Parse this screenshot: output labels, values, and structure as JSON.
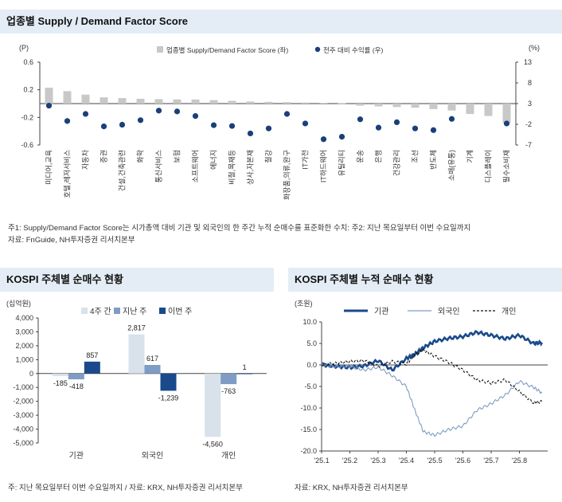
{
  "panel1": {
    "title": "업종별 Supply / Demand Factor Score",
    "left_unit": "(P)",
    "right_unit": "(%)",
    "legend_bar": "업종별 Supply/Demand Factor Score (좌)",
    "legend_dot": "전주 대비 수익률 (우)",
    "note1": "주1: Supply/Demand Factor Score는 시가총액 대비 기관 및 외국인의 한 주간 누적 순매수를 표준화한 수치: 주2: 지난 목요일부터 이번 수요일까지",
    "note2": "자료: FnGuide, NH투자증권 리서치본부"
  },
  "panel2": {
    "title": "KOSPI 주체별 순매수 현황",
    "unit": "(십억원)",
    "note": "주: 지난 목요일부터 이번 수요일까지 / 자료: KRX, NH투자증권 리서치본부"
  },
  "panel3": {
    "title": "KOSPI 주체별 누적 순매수 현황",
    "unit": "(조원)",
    "note": "자료: KRX, NH투자증권 리서치본부"
  },
  "colors": {
    "bar_gray": "#c8c8c8",
    "dot_navy": "#1a3f7a",
    "light": "#d9e1ea",
    "mid": "#7f9cc4",
    "dark": "#1a4a8c",
    "header_bg": "#e4edf6"
  },
  "chart_data": [
    {
      "type": "bar",
      "title": "업종별 Supply / Demand Factor Score",
      "categories": [
        "미디어,교육",
        "호텔,레저서비스",
        "자동차",
        "증권",
        "건설,건축관련",
        "화학",
        "통신서비스",
        "보험",
        "소프트웨어",
        "에너지",
        "비철,목재등",
        "상사,자본재",
        "철강",
        "화장품,의류,완구",
        "IT가전",
        "IT하드웨어",
        "유틸리티",
        "운송",
        "은행",
        "건강관리",
        "조선",
        "반도체",
        "소매(유통)",
        "기계",
        "디스플레이",
        "필수소비재"
      ],
      "series": [
        {
          "name": "업종별 Supply/Demand Factor Score (좌)",
          "axis": "left",
          "values": [
            0.23,
            0.18,
            0.13,
            0.09,
            0.08,
            0.07,
            0.065,
            0.06,
            0.06,
            0.05,
            0.04,
            0.03,
            0.025,
            0.02,
            0.015,
            0.01,
            0.005,
            -0.03,
            -0.04,
            -0.05,
            -0.06,
            -0.08,
            -0.1,
            -0.15,
            -0.18,
            -0.28
          ]
        },
        {
          "name": "전주 대비 수익률 (우)",
          "axis": "right",
          "type": "scatter",
          "values": [
            2.5,
            -1.2,
            0.5,
            -2.5,
            -2.1,
            -1.0,
            1.3,
            1.1,
            0.0,
            -2.2,
            -2.4,
            -4.2,
            -3.0,
            0.5,
            -1.8,
            -5.6,
            -5.0,
            -0.8,
            -2.8,
            -1.5,
            -3.0,
            -3.4,
            -0.7,
            null,
            null,
            -1.8
          ]
        }
      ],
      "ylim_left": [
        -0.6,
        0.6
      ],
      "yticks_left": [
        "0.6",
        "0.2",
        "-0.2",
        "-0.6"
      ],
      "ylim_right": [
        -7,
        13
      ],
      "yticks_right": [
        "13",
        "8",
        "3",
        "-2",
        "-7"
      ],
      "legend": "top-center"
    },
    {
      "type": "bar",
      "title": "KOSPI 주체별 순매수 현황",
      "categories": [
        "기관",
        "외국인",
        "개인"
      ],
      "series": [
        {
          "name": "4주 간",
          "values": [
            -185,
            2817,
            -4560
          ]
        },
        {
          "name": "지난 주",
          "values": [
            -418,
            617,
            -763
          ]
        },
        {
          "name": "이번 주",
          "values": [
            857,
            -1239,
            1
          ]
        }
      ],
      "labels": [
        [
          "-185",
          "-418",
          "857"
        ],
        [
          "2,817",
          "617",
          "-1,239"
        ],
        [
          "-4,560",
          "-763",
          "1"
        ]
      ],
      "ylim": [
        -5000,
        4000
      ],
      "yticks": [
        "4,000",
        "3,000",
        "2,000",
        "1,000",
        "0",
        "-1,000",
        "-2,000",
        "-3,000",
        "-4,000",
        "-5,000"
      ],
      "legend": "top-center"
    },
    {
      "type": "line",
      "title": "KOSPI 주체별 누적 순매수 현황",
      "x": [
        0,
        0.5,
        1,
        1.5,
        2,
        2.5,
        3,
        3.3,
        3.6,
        4,
        4.5,
        5,
        5.5,
        6,
        6.5,
        7,
        7.5,
        7.8
      ],
      "xticks": [
        "'25.1",
        "'25.2",
        "'25.3",
        "'25.4",
        "'25.5",
        "'25.6",
        "'25.7",
        "'25.8"
      ],
      "series": [
        {
          "name": "기관",
          "values": [
            0,
            -0.3,
            -0.6,
            -0.2,
            1.0,
            -1.2,
            1.5,
            2.5,
            4.0,
            5.5,
            6.2,
            6.6,
            7.6,
            6.9,
            6.1,
            6.9,
            5.0,
            5.2
          ]
        },
        {
          "name": "외국인",
          "values": [
            0,
            -0.4,
            -0.3,
            -1.2,
            -0.5,
            -2.5,
            -5.0,
            -10.5,
            -15.5,
            -16.3,
            -15.0,
            -14.2,
            -10.5,
            -9.0,
            -7.0,
            -3.8,
            -5.2,
            -6.5
          ]
        },
        {
          "name": "개인",
          "values": [
            0,
            0.4,
            0.8,
            1.0,
            -0.3,
            0.8,
            0.2,
            2.3,
            3.5,
            2.0,
            0.6,
            -1.2,
            -3.5,
            -4.2,
            -3.5,
            -6.2,
            -8.8,
            -8.5
          ]
        }
      ],
      "ylim": [
        -20,
        10
      ],
      "yticks": [
        "10.0",
        "5.0",
        "0.0",
        "-5.0",
        "-10.0",
        "-15.0",
        "-20.0"
      ],
      "legend": "top"
    }
  ]
}
